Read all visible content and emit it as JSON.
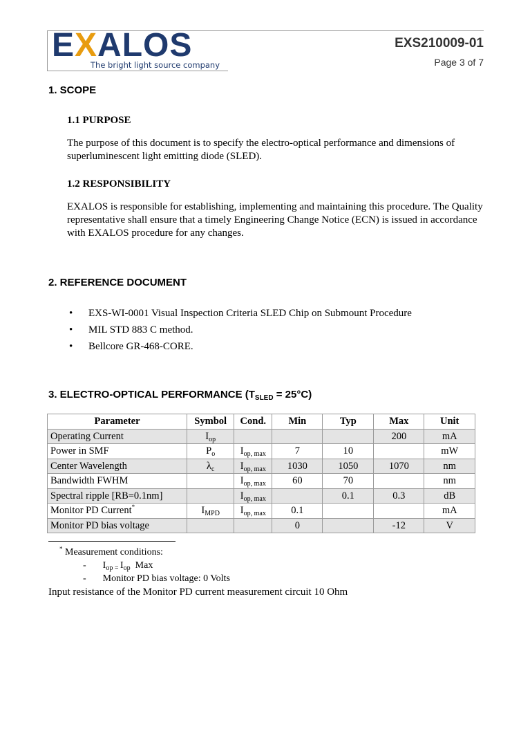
{
  "header": {
    "logo_text_pre": "E",
    "logo_text_x": "X",
    "logo_text_post": "ALOS",
    "logo_tagline": "The bright light source company",
    "doc_number": "EXS210009-01",
    "page": "Page 3 of 7",
    "colors": {
      "logo_blue": "#1f3a6e",
      "logo_orange": "#e89c10"
    }
  },
  "sections": {
    "scope": {
      "title": "1.  SCOPE",
      "purpose_title": "1.1 PURPOSE",
      "purpose_text": "The purpose of this document is to specify the electro-optical performance and dimensions of superluminescent light emitting diode (SLED).",
      "responsibility_title": "1.2 RESPONSIBILITY",
      "responsibility_text": "EXALOS is responsible for establishing, implementing and maintaining this procedure.  The Quality representative shall ensure that a timely Engineering Change Notice (ECN) is issued in accordance with EXALOS procedure for any changes."
    },
    "reference": {
      "title": "2.  REFERENCE DOCUMENT",
      "items": [
        "EXS-WI-0001 Visual Inspection Criteria SLED Chip on Submount Procedure",
        "MIL STD 883 C method.",
        "Bellcore GR-468-CORE."
      ]
    },
    "performance": {
      "title_pre": "3.  ELECTRO-OPTICAL PERFORMANCE  (T",
      "title_sub": "SLED",
      "title_post": " = 25°C)"
    }
  },
  "table": {
    "headers": [
      "Parameter",
      "Symbol",
      "Cond.",
      "Min",
      "Typ",
      "Max",
      "Unit"
    ],
    "rows": [
      {
        "parameter": "Operating Current",
        "sup": "",
        "sym": "I",
        "sym_sub": "op",
        "cond": "",
        "cond_sub": "",
        "min": "",
        "typ": "",
        "max": "200",
        "unit": "mA"
      },
      {
        "parameter": "Power in SMF",
        "sup": "",
        "sym": "P",
        "sym_sub": "o",
        "cond": "I",
        "cond_sub": "op, max",
        "min": "7",
        "typ": "10",
        "max": "",
        "unit": "mW"
      },
      {
        "parameter": "Center Wavelength",
        "sup": "",
        "sym": "λ",
        "sym_sub": "c",
        "cond": "I",
        "cond_sub": "op, max",
        "min": "1030",
        "typ": "1050",
        "max": "1070",
        "unit": "nm"
      },
      {
        "parameter": "Bandwidth FWHM",
        "sup": "",
        "sym": "",
        "sym_sub": "",
        "cond": "I",
        "cond_sub": "op, max",
        "min": "60",
        "typ": "70",
        "max": "",
        "unit": "nm"
      },
      {
        "parameter": "Spectral ripple [RB=0.1nm]",
        "sup": "",
        "sym": "",
        "sym_sub": "",
        "cond": "I",
        "cond_sub": "op, max",
        "min": "",
        "typ": "0.1",
        "max": "0.3",
        "unit": "dB"
      },
      {
        "parameter": "Monitor PD Current",
        "sup": "*",
        "sym": "I",
        "sym_sub": "MPD",
        "cond": "I",
        "cond_sub": "op, max",
        "min": "0.1",
        "typ": "",
        "max": "",
        "unit": "mA"
      },
      {
        "parameter": "Monitor PD  bias voltage",
        "sup": "",
        "sym": "",
        "sym_sub": "",
        "cond": "",
        "cond_sub": "",
        "min": "0",
        "typ": "",
        "max": "-12",
        "unit": "V"
      }
    ]
  },
  "footnote": {
    "mark": "*",
    "title": " Measurement conditions:",
    "dash": "-",
    "item1_a": "I",
    "item1_a_sub": "op = ",
    "item1_b": "I",
    "item1_b_sub": "op",
    "item1_c": "  Max",
    "item2": "Monitor PD bias voltage: 0 Volts",
    "note": "Input resistance of the Monitor PD current measurement circuit 10 Ohm"
  }
}
